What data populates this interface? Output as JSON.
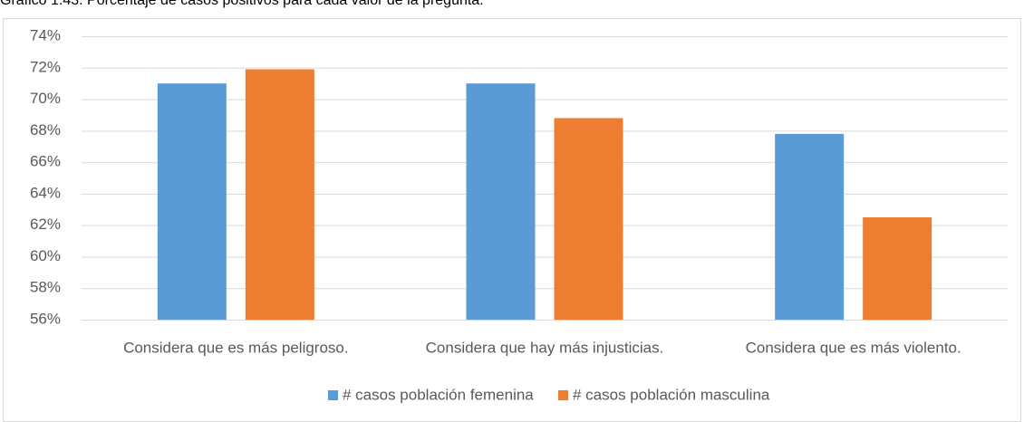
{
  "chart_data": {
    "type": "bar",
    "title": "Gráfico 1.43. Porcentaje de casos positivos para cada valor de la pregunta.",
    "categories": [
      "Considera que es más peligroso.",
      "Considera que hay más injusticias.",
      "Considera que es más violento."
    ],
    "series": [
      {
        "name": "# casos población femenina",
        "color": "#5b9bd5",
        "values": [
          71.0,
          71.0,
          67.8
        ]
      },
      {
        "name": "# casos población masculina",
        "color": "#ed7d31",
        "values": [
          71.9,
          68.8,
          62.5
        ]
      }
    ],
    "ylim": [
      56,
      74
    ],
    "yticks": [
      {
        "value": 56,
        "label": "56%"
      },
      {
        "value": 58,
        "label": "58%"
      },
      {
        "value": 60,
        "label": "60%"
      },
      {
        "value": 62,
        "label": "62%"
      },
      {
        "value": 64,
        "label": "64%"
      },
      {
        "value": 66,
        "label": "66%"
      },
      {
        "value": 68,
        "label": "68%"
      },
      {
        "value": 70,
        "label": "70%"
      },
      {
        "value": 72,
        "label": "72%"
      },
      {
        "value": 74,
        "label": "74%"
      }
    ],
    "grid": true,
    "legend": "bottom"
  }
}
